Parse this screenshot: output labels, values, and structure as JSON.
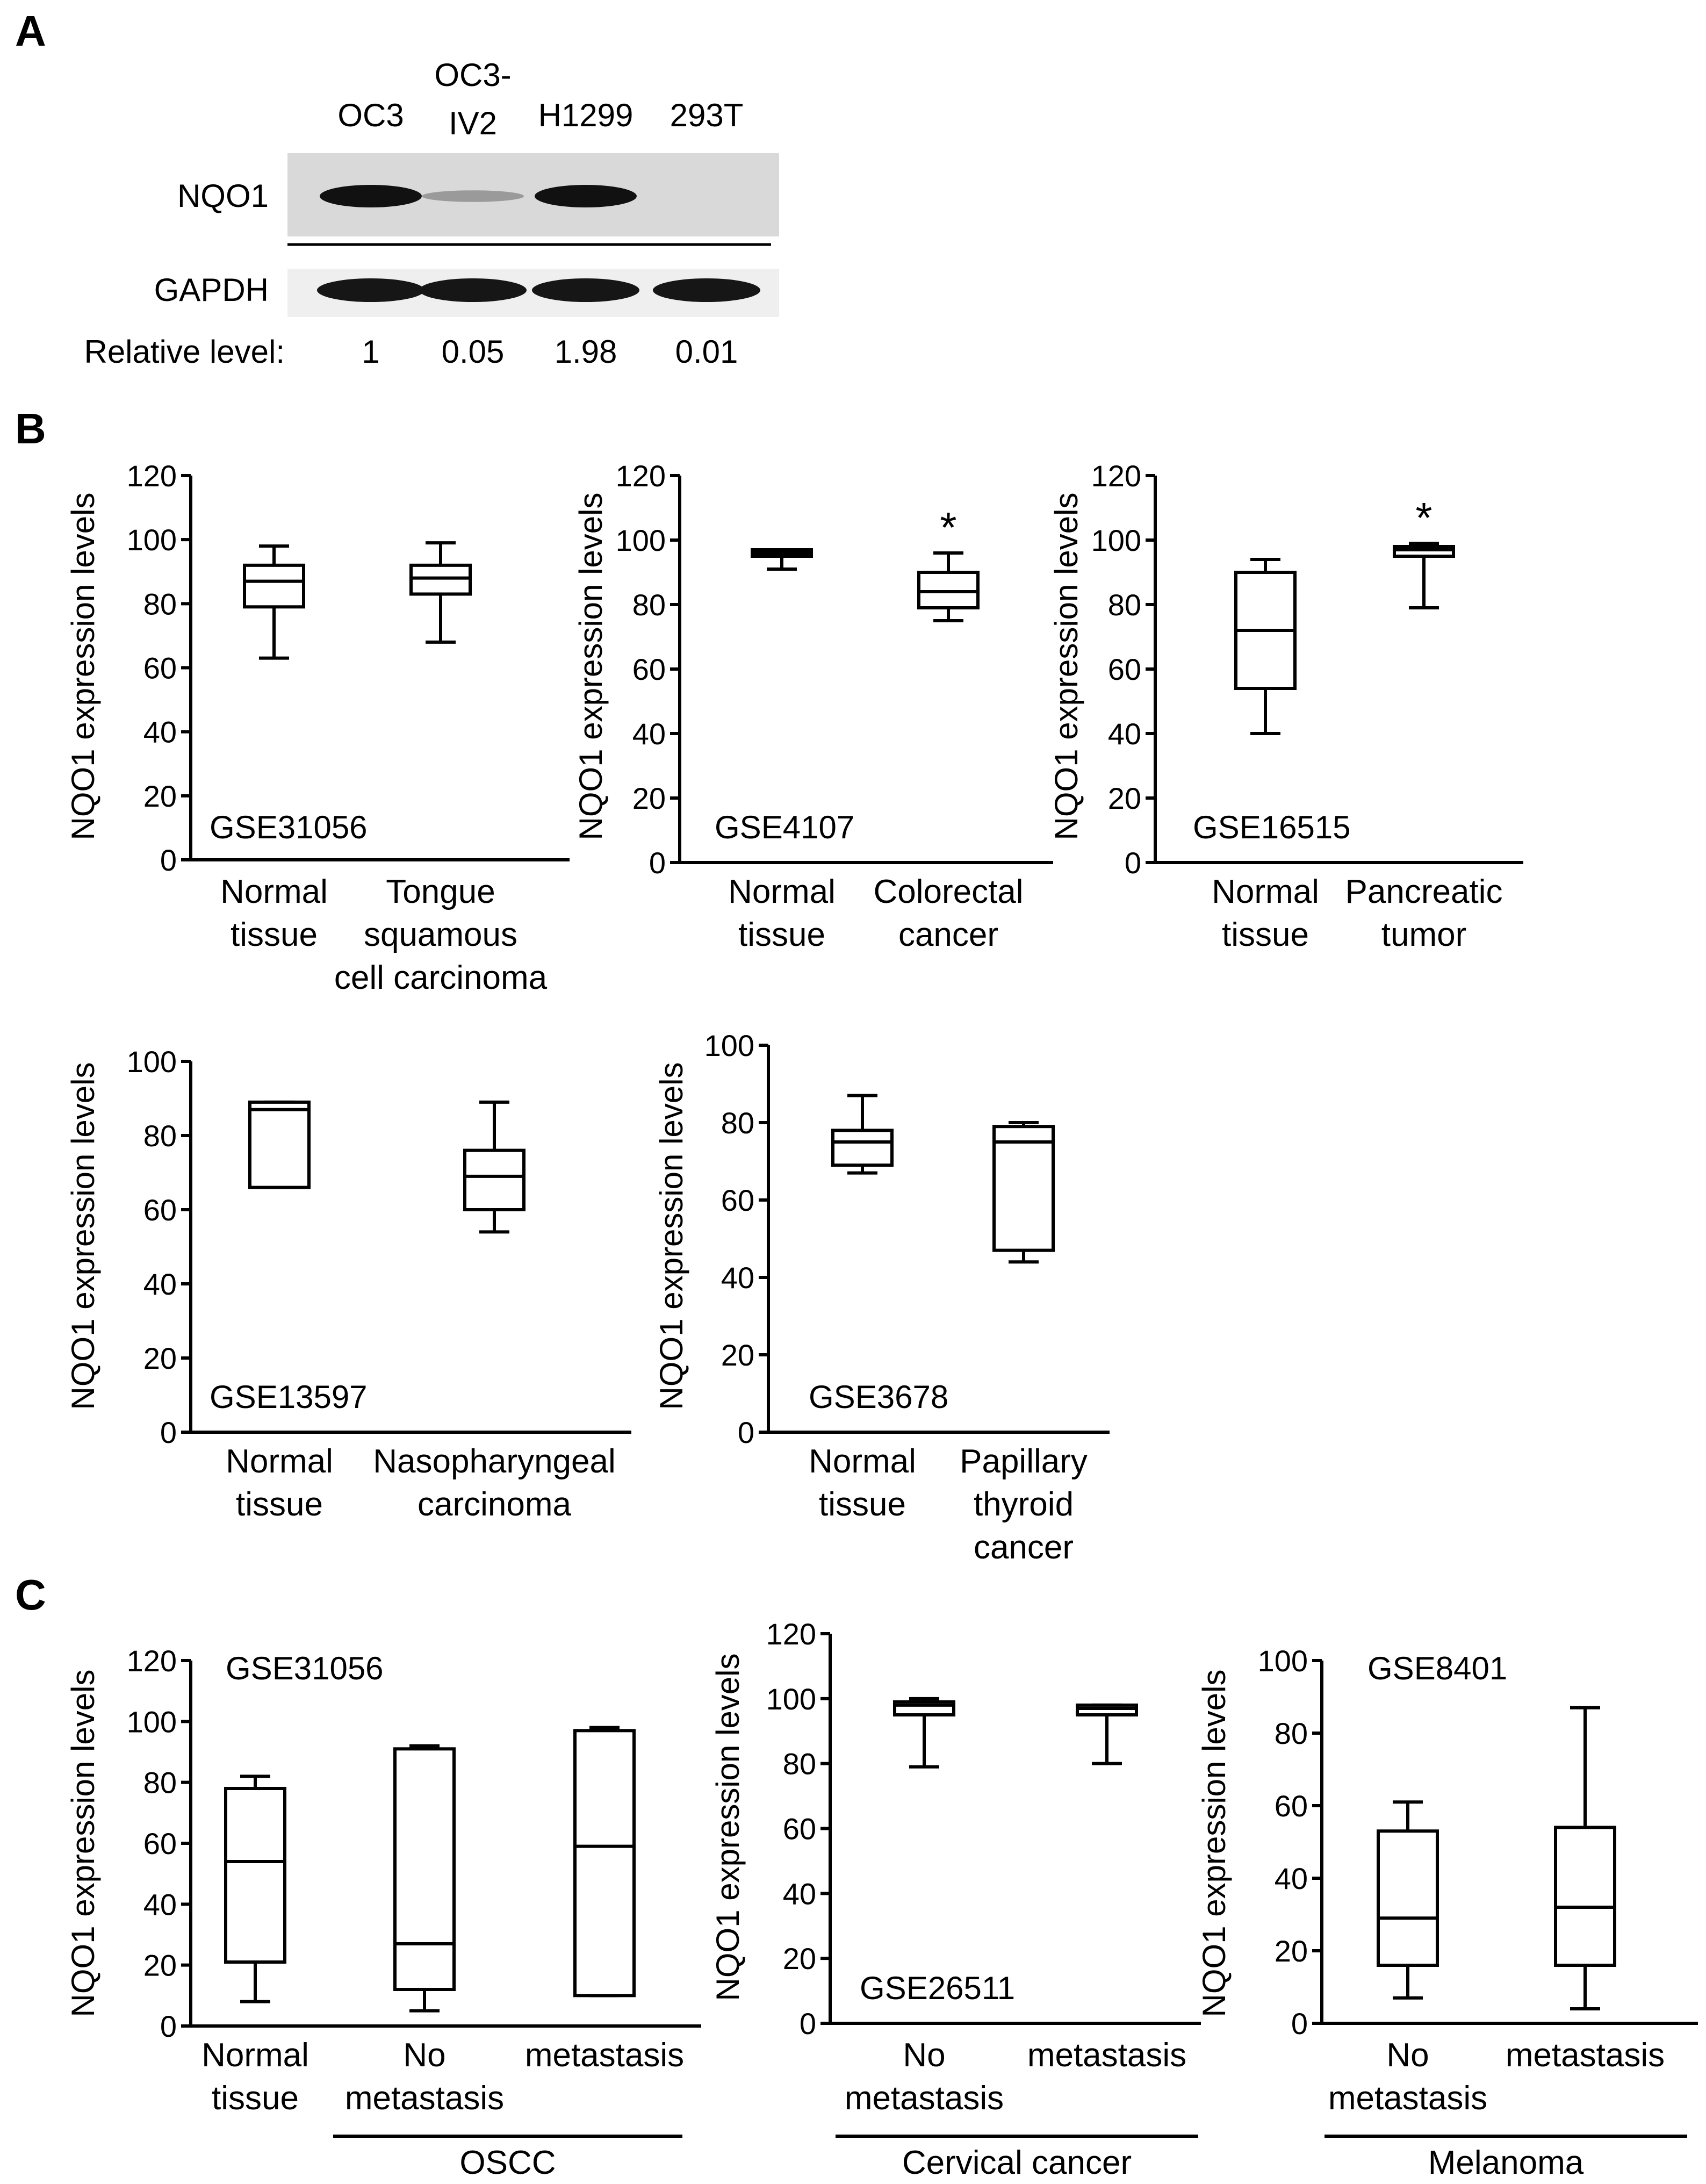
{
  "panel_labels": {
    "a": "A",
    "b": "B",
    "c": "C"
  },
  "western_blot": {
    "lanes": [
      {
        "line1": "OC3",
        "line2": "",
        "relative": "1",
        "nqo1": 1.0
      },
      {
        "line1": "OC3-",
        "line2": "IV2",
        "relative": "0.05",
        "nqo1": 0.15
      },
      {
        "line1": "H1299",
        "line2": "",
        "relative": "1.98",
        "nqo1": 1.0
      },
      {
        "line1": "293T",
        "line2": "",
        "relative": "0.01",
        "nqo1": 0.0
      }
    ],
    "row_labels": {
      "nqo1": "NQO1",
      "gapdh": "GAPDH",
      "relative": "Relative level:"
    }
  },
  "chart_data": [
    {
      "id": "b1",
      "type": "box",
      "title": "GSE31056",
      "ylabel": "NQO1 expression levels",
      "ylim": [
        0,
        120
      ],
      "yticks": [
        0,
        20,
        40,
        60,
        80,
        100,
        120
      ],
      "groups": [
        {
          "label": [
            "Normal",
            "tissue"
          ],
          "min": 63,
          "q1": 79,
          "median": 87,
          "q3": 92,
          "max": 98,
          "sig": ""
        },
        {
          "label": [
            "Tongue",
            "squamous",
            "cell carcinoma"
          ],
          "min": 68,
          "q1": 83,
          "median": 88,
          "q3": 92,
          "max": 99,
          "sig": ""
        }
      ]
    },
    {
      "id": "b2",
      "type": "box",
      "title": "GSE4107",
      "ylabel": "NQO1 expression levels",
      "ylim": [
        0,
        120
      ],
      "yticks": [
        0,
        20,
        40,
        60,
        80,
        100,
        120
      ],
      "groups": [
        {
          "label": [
            "Normal",
            "tissue"
          ],
          "min": 91,
          "q1": 95,
          "median": 96,
          "q3": 97,
          "max": 97,
          "sig": ""
        },
        {
          "label": [
            "Colorectal",
            "cancer"
          ],
          "min": 75,
          "q1": 79,
          "median": 84,
          "q3": 90,
          "max": 96,
          "sig": "*"
        }
      ]
    },
    {
      "id": "b3",
      "type": "box",
      "title": "GSE16515",
      "ylabel": "NQO1 expression levels",
      "ylim": [
        0,
        120
      ],
      "yticks": [
        0,
        20,
        40,
        60,
        80,
        100,
        120
      ],
      "groups": [
        {
          "label": [
            "Normal",
            "tissue"
          ],
          "min": 40,
          "q1": 54,
          "median": 72,
          "q3": 90,
          "max": 94,
          "sig": ""
        },
        {
          "label": [
            "Pancreatic",
            "tumor"
          ],
          "min": 79,
          "q1": 95,
          "median": 97,
          "q3": 98,
          "max": 99,
          "sig": "*"
        }
      ]
    },
    {
      "id": "b4",
      "type": "box",
      "title": "GSE13597",
      "ylabel": "NQO1 expression levels",
      "ylim": [
        0,
        100
      ],
      "yticks": [
        0,
        20,
        40,
        60,
        80,
        100
      ],
      "groups": [
        {
          "label": [
            "Normal",
            "tissue"
          ],
          "min": 66,
          "q1": 66,
          "median": 87,
          "q3": 89,
          "max": 89,
          "sig": ""
        },
        {
          "label": [
            "Nasopharyngeal",
            "carcinoma"
          ],
          "min": 54,
          "q1": 60,
          "median": 69,
          "q3": 76,
          "max": 89,
          "sig": ""
        }
      ]
    },
    {
      "id": "b5",
      "type": "box",
      "title": "GSE3678",
      "ylabel": "NQO1 expression levels",
      "ylim": [
        0,
        100
      ],
      "yticks": [
        0,
        20,
        40,
        60,
        80,
        100
      ],
      "groups": [
        {
          "label": [
            "Normal",
            "tissue"
          ],
          "min": 67,
          "q1": 69,
          "median": 75,
          "q3": 78,
          "max": 87,
          "sig": ""
        },
        {
          "label": [
            "Papillary",
            "thyroid",
            "cancer"
          ],
          "min": 44,
          "q1": 47,
          "median": 75,
          "q3": 79,
          "max": 80,
          "sig": ""
        }
      ]
    },
    {
      "id": "c1",
      "type": "box",
      "title": "GSE31056",
      "ylabel": "NQO1 expression levels",
      "ylim": [
        0,
        120
      ],
      "yticks": [
        0,
        20,
        40,
        60,
        80,
        100,
        120
      ],
      "bracket": "OSCC",
      "bracket_from": 1,
      "groups": [
        {
          "label": [
            "Normal",
            "tissue"
          ],
          "min": 8,
          "q1": 21,
          "median": 54,
          "q3": 78,
          "max": 82,
          "sig": ""
        },
        {
          "label": [
            "No",
            "metastasis"
          ],
          "min": 5,
          "q1": 12,
          "median": 27,
          "q3": 91,
          "max": 92,
          "sig": ""
        },
        {
          "label": [
            "metastasis"
          ],
          "min": 10,
          "q1": 10,
          "median": 59,
          "q3": 97,
          "max": 98,
          "sig": ""
        }
      ]
    },
    {
      "id": "c2",
      "type": "box",
      "title": "GSE26511",
      "ylabel": "NQO1 expression levels",
      "ylim": [
        0,
        120
      ],
      "yticks": [
        0,
        20,
        40,
        60,
        80,
        100,
        120
      ],
      "bracket": "Cervical cancer",
      "bracket_from": 0,
      "groups": [
        {
          "label": [
            "No",
            "metastasis"
          ],
          "min": 79,
          "q1": 95,
          "median": 98,
          "q3": 99,
          "max": 100,
          "sig": ""
        },
        {
          "label": [
            "metastasis"
          ],
          "min": 80,
          "q1": 95,
          "median": 97,
          "q3": 98,
          "max": 98,
          "sig": ""
        }
      ]
    },
    {
      "id": "c3",
      "type": "box",
      "title": "GSE8401",
      "ylabel": "NQO1 expression levels",
      "ylim": [
        0,
        100
      ],
      "yticks": [
        0,
        20,
        40,
        60,
        80,
        100
      ],
      "bracket": "Melanoma",
      "bracket_from": 0,
      "groups": [
        {
          "label": [
            "No",
            "metastasis"
          ],
          "min": 7,
          "q1": 16,
          "median": 29,
          "q3": 53,
          "max": 61,
          "sig": ""
        },
        {
          "label": [
            "metastasis"
          ],
          "min": 4,
          "q1": 16,
          "median": 32,
          "q3": 54,
          "max": 87,
          "sig": ""
        }
      ]
    }
  ]
}
